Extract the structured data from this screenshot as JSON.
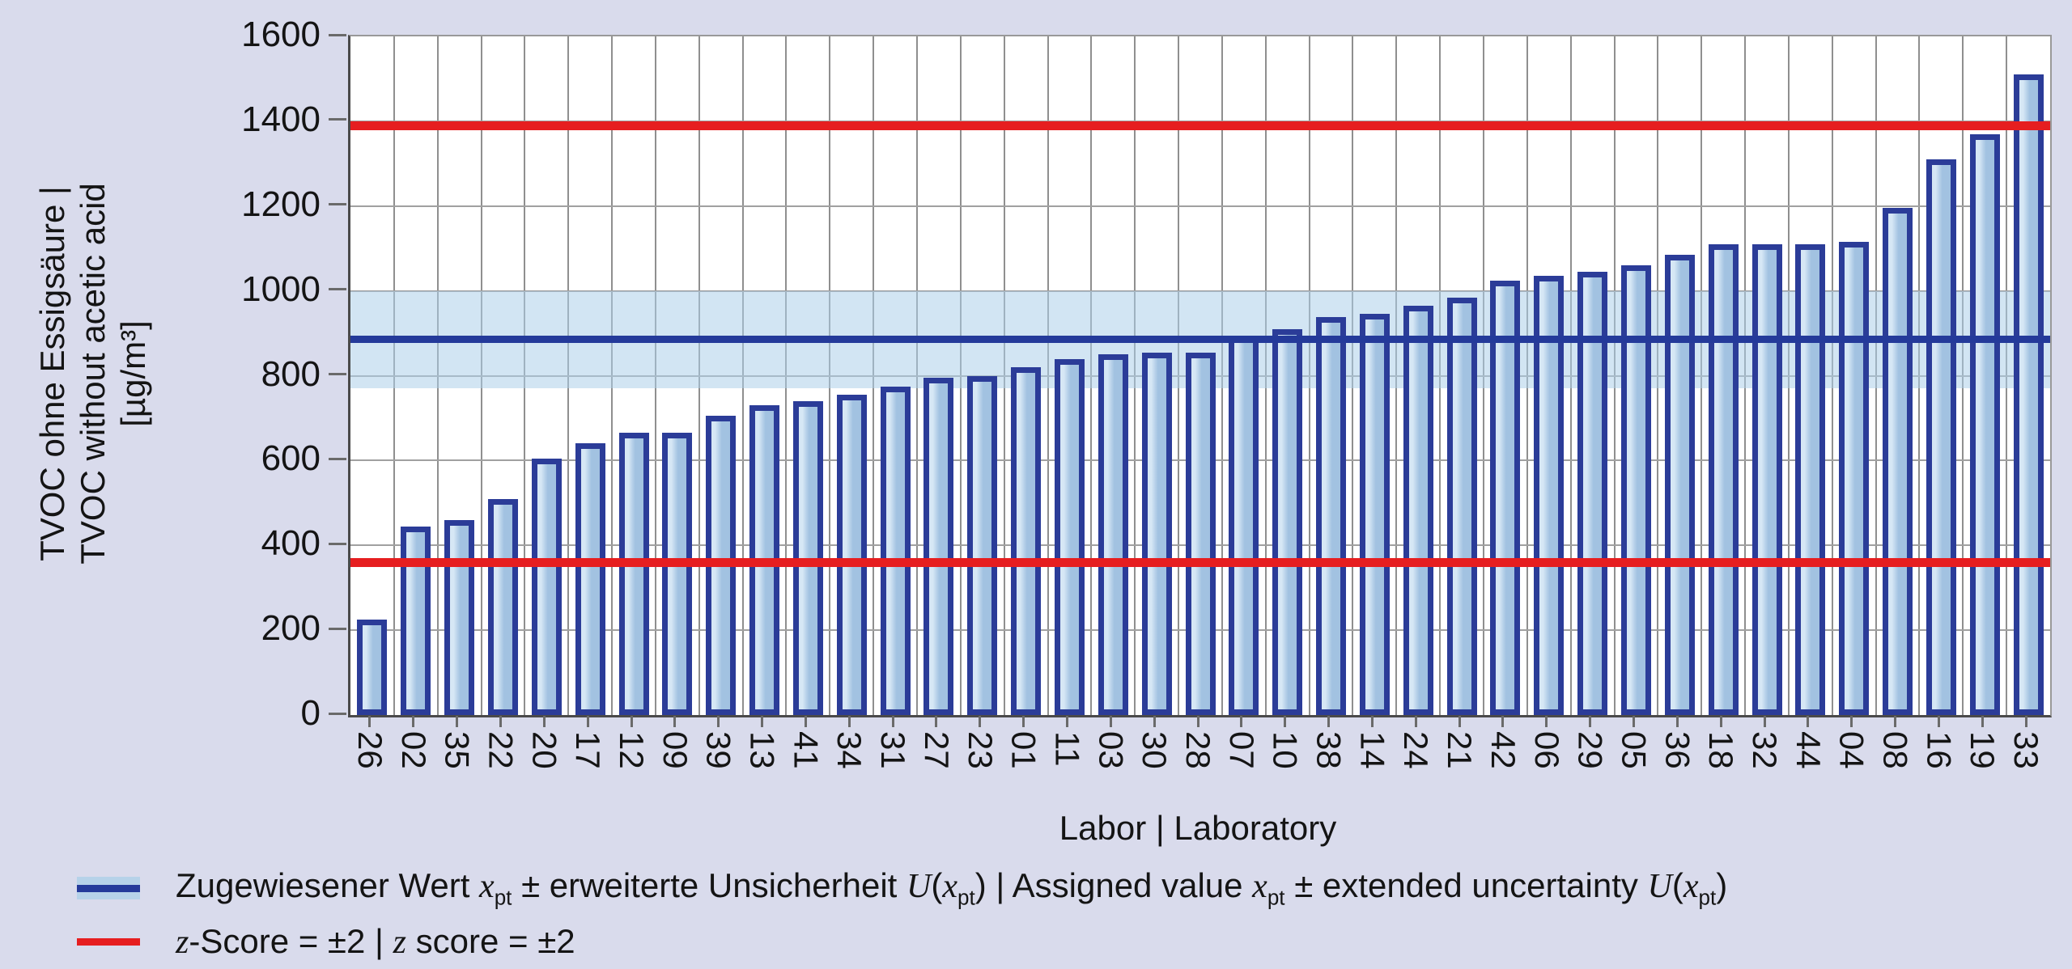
{
  "chart_data": {
    "type": "bar",
    "xlabel": "Labor | Laboratory",
    "ylabel_lines": [
      "TVOC ohne Essigsäure |",
      "TVOC without acetic acid",
      "[µg/m³]"
    ],
    "ylim": [
      0,
      1600
    ],
    "ytick_step": 200,
    "yticks": [
      0,
      200,
      400,
      600,
      800,
      1000,
      1200,
      1400,
      1600
    ],
    "categories": [
      "26",
      "02",
      "35",
      "22",
      "20",
      "17",
      "12",
      "09",
      "39",
      "13",
      "41",
      "34",
      "31",
      "27",
      "23",
      "01",
      "11",
      "03",
      "30",
      "28",
      "07",
      "10",
      "38",
      "14",
      "24",
      "21",
      "42",
      "06",
      "29",
      "05",
      "36",
      "18",
      "32",
      "44",
      "04",
      "08",
      "16",
      "19",
      "33"
    ],
    "values": [
      225,
      445,
      460,
      510,
      605,
      640,
      665,
      665,
      705,
      730,
      740,
      755,
      775,
      795,
      800,
      820,
      840,
      850,
      855,
      855,
      890,
      910,
      938,
      945,
      965,
      985,
      1025,
      1035,
      1045,
      1060,
      1085,
      1110,
      1110,
      1110,
      1115,
      1195,
      1310,
      1370,
      1510
    ],
    "assigned_value": 885,
    "uncertainty_band": [
      770,
      1000
    ],
    "z_score_upper_line": 1390,
    "z_score_lower_line": 360,
    "grid": {
      "horizontal_every": 200,
      "vertical_between_bars": true
    },
    "legend_position": "bottom-left"
  },
  "legend": {
    "assigned_segments": [
      {
        "t": "Zugewiesener Wert "
      },
      {
        "i": "x"
      },
      {
        "s": "pt"
      },
      {
        "t": " ± erweiterte Unsicherheit "
      },
      {
        "i": "U"
      },
      {
        "t": "("
      },
      {
        "i": "x"
      },
      {
        "s": "pt"
      },
      {
        "t": ") | Assigned value "
      },
      {
        "i": "x"
      },
      {
        "s": "pt"
      },
      {
        "t": " ± extended uncertainty "
      },
      {
        "i": "U"
      },
      {
        "t": "("
      },
      {
        "i": "x"
      },
      {
        "s": "pt"
      },
      {
        "t": ")"
      }
    ],
    "zscore_segments": [
      {
        "i": "z"
      },
      {
        "t": "-Score = ±2 | "
      },
      {
        "i": "z"
      },
      {
        "t": " score = ±2"
      }
    ]
  },
  "colors": {
    "page_bg": "#d9dbec",
    "plot_bg": "#ffffff",
    "bar_fill": "#a2c2e1",
    "bar_fill_highlight": "#d6e7f5",
    "bar_border": "#2b3c98",
    "assigned_line": "#243a9a",
    "uncertainty_band_rgba": "rgba(173,207,233,0.55)",
    "z_score_line": "#e61e20",
    "gridline_h": "#a0a0a0",
    "gridline_v": "#8f8f8f",
    "tick": "#6a6a6a",
    "text": "#141414"
  }
}
